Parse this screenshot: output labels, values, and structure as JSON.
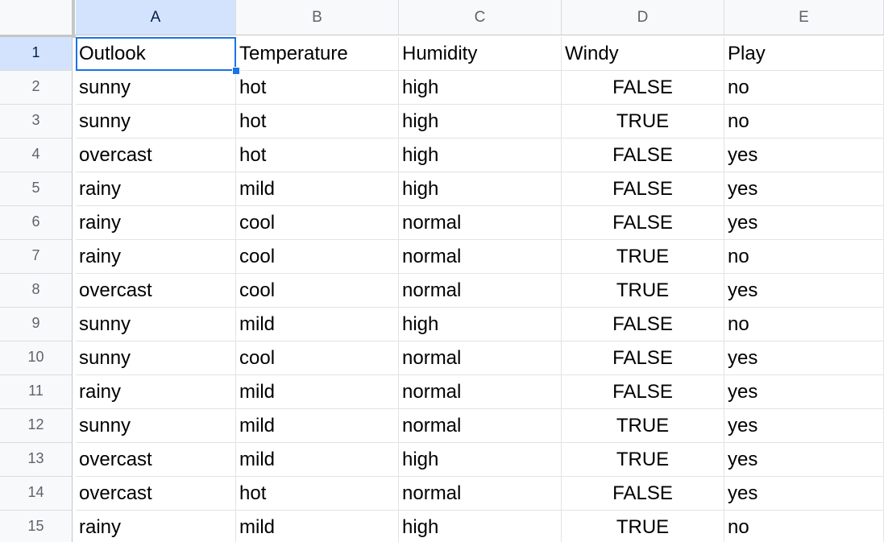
{
  "columns": [
    "A",
    "B",
    "C",
    "D",
    "E"
  ],
  "rows": [
    {
      "num": "1",
      "cells": [
        "Outlook",
        "Temperature",
        "Humidity",
        "Windy",
        "Play"
      ]
    },
    {
      "num": "2",
      "cells": [
        "sunny",
        "hot",
        "high",
        "FALSE",
        "no"
      ]
    },
    {
      "num": "3",
      "cells": [
        "sunny",
        "hot",
        "high",
        "TRUE",
        "no"
      ]
    },
    {
      "num": "4",
      "cells": [
        "overcast",
        "hot",
        "high",
        "FALSE",
        "yes"
      ]
    },
    {
      "num": "5",
      "cells": [
        "rainy",
        "mild",
        "high",
        "FALSE",
        "yes"
      ]
    },
    {
      "num": "6",
      "cells": [
        "rainy",
        "cool",
        "normal",
        "FALSE",
        "yes"
      ]
    },
    {
      "num": "7",
      "cells": [
        "rainy",
        "cool",
        "normal",
        "TRUE",
        "no"
      ]
    },
    {
      "num": "8",
      "cells": [
        "overcast",
        "cool",
        "normal",
        "TRUE",
        "yes"
      ]
    },
    {
      "num": "9",
      "cells": [
        "sunny",
        "mild",
        "high",
        "FALSE",
        "no"
      ]
    },
    {
      "num": "10",
      "cells": [
        "sunny",
        "cool",
        "normal",
        "FALSE",
        "yes"
      ]
    },
    {
      "num": "11",
      "cells": [
        "rainy",
        "mild",
        "normal",
        "FALSE",
        "yes"
      ]
    },
    {
      "num": "12",
      "cells": [
        "sunny",
        "mild",
        "normal",
        "TRUE",
        "yes"
      ]
    },
    {
      "num": "13",
      "cells": [
        "overcast",
        "mild",
        "high",
        "TRUE",
        "yes"
      ]
    },
    {
      "num": "14",
      "cells": [
        "overcast",
        "hot",
        "normal",
        "FALSE",
        "yes"
      ]
    },
    {
      "num": "15",
      "cells": [
        "rainy",
        "mild",
        "high",
        "TRUE",
        "no"
      ]
    }
  ],
  "active_cell": "A1",
  "colors": {
    "selection": "#1a73e8",
    "header_selected_bg": "#d3e3fd",
    "header_bg": "#f8f9fa"
  }
}
